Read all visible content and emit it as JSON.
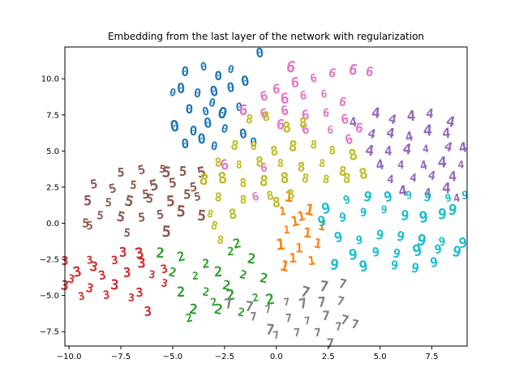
{
  "chart_data": {
    "type": "scatter",
    "title": "Embedding from the last layer of the network with regularization",
    "xlabel": "",
    "ylabel": "",
    "xlim": [
      -10.2,
      9.2
    ],
    "ylim": [
      -8.5,
      12.2
    ],
    "x_ticks": [
      -10.0,
      -7.5,
      -5.0,
      -2.5,
      0.0,
      2.5,
      5.0,
      7.5
    ],
    "y_ticks": [
      -7.5,
      -5.0,
      -2.5,
      0.0,
      2.5,
      5.0,
      7.5,
      10.0
    ],
    "x_tick_labels": [
      "−10.0",
      "−7.5",
      "−5.0",
      "−2.5",
      "0.0",
      "2.5",
      "5.0",
      "7.5"
    ],
    "y_tick_labels": [
      "−7.5",
      "−5.0",
      "−2.5",
      "0.0",
      "2.5",
      "5.0",
      "7.5",
      "10.0"
    ],
    "grid": false,
    "markers": "digit glyph images",
    "series": [
      {
        "name": "0",
        "color": "#1f77b4",
        "points": [
          [
            -4.4,
            10.5
          ],
          [
            -3.5,
            10.8
          ],
          [
            -2.8,
            10.2
          ],
          [
            -2.2,
            10.6
          ],
          [
            -4.6,
            9.3
          ],
          [
            -3.8,
            9.0
          ],
          [
            -3.0,
            9.1
          ],
          [
            -2.2,
            9.4
          ],
          [
            -1.5,
            9.8
          ],
          [
            -4.2,
            7.9
          ],
          [
            -3.4,
            7.7
          ],
          [
            -2.6,
            7.6
          ],
          [
            -1.8,
            8.0
          ],
          [
            -4.9,
            6.7
          ],
          [
            -4.0,
            6.4
          ],
          [
            -3.3,
            6.9
          ],
          [
            -2.5,
            6.5
          ],
          [
            -1.6,
            6.2
          ],
          [
            -4.4,
            5.5
          ],
          [
            -3.0,
            5.3
          ],
          [
            -1.1,
            5.6
          ],
          [
            -5.0,
            9.0
          ],
          [
            -3.1,
            8.3
          ],
          [
            -0.8,
            11.8
          ],
          [
            -3.6,
            5.8
          ]
        ]
      },
      {
        "name": "1",
        "color": "#ff7f0e",
        "points": [
          [
            0.6,
            1.8
          ],
          [
            0.3,
            0.8
          ],
          [
            1.2,
            0.5
          ],
          [
            0.5,
            -0.5
          ],
          [
            1.5,
            -0.7
          ],
          [
            0.2,
            -1.5
          ],
          [
            1.1,
            -1.7
          ],
          [
            2.0,
            -1.4
          ],
          [
            0.8,
            -2.4
          ],
          [
            1.7,
            -2.6
          ],
          [
            0.9,
            0.1
          ],
          [
            2.2,
            -0.2
          ],
          [
            0.4,
            -3.0
          ],
          [
            1.6,
            0.9
          ]
        ]
      },
      {
        "name": "2",
        "color": "#2ca02c",
        "points": [
          [
            -5.6,
            -2.1
          ],
          [
            -4.6,
            -2.3
          ],
          [
            -3.4,
            -2.8
          ],
          [
            -2.2,
            -2.0
          ],
          [
            -1.2,
            -2.5
          ],
          [
            -5.0,
            -3.4
          ],
          [
            -3.9,
            -3.7
          ],
          [
            -2.8,
            -3.4
          ],
          [
            -1.6,
            -3.6
          ],
          [
            -0.6,
            -3.8
          ],
          [
            -4.6,
            -4.8
          ],
          [
            -3.4,
            -4.8
          ],
          [
            -2.2,
            -5.0
          ],
          [
            -1.0,
            -5.2
          ],
          [
            -4.0,
            -6.0
          ],
          [
            -2.8,
            -6.0
          ],
          [
            -1.7,
            -6.2
          ],
          [
            -4.2,
            -6.6
          ],
          [
            -3.0,
            -5.5
          ],
          [
            -2.4,
            -4.3
          ],
          [
            -0.3,
            -5.3
          ],
          [
            -1.9,
            -1.4
          ]
        ]
      },
      {
        "name": "3",
        "color": "#d62728",
        "points": [
          [
            -10.2,
            -2.6
          ],
          [
            -9.0,
            -2.6
          ],
          [
            -7.8,
            -2.6
          ],
          [
            -6.6,
            -2.1
          ],
          [
            -5.4,
            -3.2
          ],
          [
            -9.6,
            -3.4
          ],
          [
            -8.4,
            -3.6
          ],
          [
            -7.2,
            -3.4
          ],
          [
            -6.0,
            -3.6
          ],
          [
            -10.2,
            -4.3
          ],
          [
            -9.0,
            -4.5
          ],
          [
            -7.8,
            -4.3
          ],
          [
            -6.6,
            -4.8
          ],
          [
            -5.4,
            -4.2
          ],
          [
            -9.4,
            -5.1
          ],
          [
            -8.2,
            -5.0
          ],
          [
            -7.0,
            -5.2
          ],
          [
            -6.2,
            -6.1
          ],
          [
            -8.8,
            -3.0
          ],
          [
            -7.4,
            -2.0
          ],
          [
            -9.9,
            -3.9
          ],
          [
            -6.5,
            -2.8
          ]
        ]
      },
      {
        "name": "4",
        "color": "#9467bd",
        "points": [
          [
            4.8,
            7.6
          ],
          [
            5.6,
            7.2
          ],
          [
            6.5,
            7.4
          ],
          [
            7.4,
            7.6
          ],
          [
            8.4,
            7.0
          ],
          [
            4.6,
            6.2
          ],
          [
            5.5,
            6.2
          ],
          [
            6.4,
            6.0
          ],
          [
            7.3,
            6.4
          ],
          [
            8.2,
            6.2
          ],
          [
            4.5,
            5.0
          ],
          [
            5.4,
            5.0
          ],
          [
            6.3,
            5.1
          ],
          [
            7.2,
            5.1
          ],
          [
            8.3,
            5.3
          ],
          [
            9.0,
            5.2
          ],
          [
            5.0,
            4.0
          ],
          [
            6.0,
            4.0
          ],
          [
            7.1,
            4.0
          ],
          [
            8.0,
            4.2
          ],
          [
            8.9,
            4.0
          ],
          [
            5.5,
            3.0
          ],
          [
            6.6,
            3.1
          ],
          [
            7.5,
            3.3
          ],
          [
            8.5,
            3.2
          ],
          [
            6.1,
            2.2
          ],
          [
            7.3,
            2.1
          ],
          [
            8.2,
            2.4
          ],
          [
            8.7,
            1.7
          ],
          [
            3.7,
            7.0
          ]
        ]
      },
      {
        "name": "5",
        "color": "#8c564b",
        "points": [
          [
            -7.5,
            3.5
          ],
          [
            -6.5,
            3.7
          ],
          [
            -5.5,
            3.7
          ],
          [
            -4.5,
            3.6
          ],
          [
            -3.6,
            3.5
          ],
          [
            -8.8,
            2.7
          ],
          [
            -7.9,
            2.4
          ],
          [
            -6.9,
            2.6
          ],
          [
            -5.9,
            2.6
          ],
          [
            -5.0,
            2.8
          ],
          [
            -4.0,
            2.5
          ],
          [
            -9.1,
            1.5
          ],
          [
            -8.1,
            1.4
          ],
          [
            -7.1,
            1.5
          ],
          [
            -6.1,
            1.7
          ],
          [
            -5.1,
            1.5
          ],
          [
            -3.8,
            1.8
          ],
          [
            -8.5,
            0.5
          ],
          [
            -7.5,
            0.4
          ],
          [
            -6.5,
            0.4
          ],
          [
            -5.6,
            0.6
          ],
          [
            -4.6,
            0.8
          ],
          [
            -3.6,
            0.5
          ],
          [
            -9.2,
            0.0
          ],
          [
            -7.2,
            -0.7
          ],
          [
            -5.3,
            -0.6
          ],
          [
            -6.3,
            2.0
          ],
          [
            -4.3,
            2.0
          ],
          [
            -9.0,
            -0.2
          ],
          [
            -5.3,
            3.5
          ]
        ]
      },
      {
        "name": "6",
        "color": "#e377c2",
        "points": [
          [
            0.0,
            9.3
          ],
          [
            0.9,
            9.7
          ],
          [
            1.8,
            10.0
          ],
          [
            2.7,
            10.4
          ],
          [
            3.7,
            10.6
          ],
          [
            4.5,
            10.5
          ],
          [
            -0.6,
            8.8
          ],
          [
            0.4,
            8.6
          ],
          [
            1.3,
            8.8
          ],
          [
            2.3,
            8.9
          ],
          [
            3.2,
            8.4
          ],
          [
            -1.6,
            7.8
          ],
          [
            -0.6,
            7.6
          ],
          [
            0.4,
            7.8
          ],
          [
            1.4,
            7.5
          ],
          [
            2.4,
            7.6
          ],
          [
            3.3,
            7.2
          ],
          [
            0.2,
            6.8
          ],
          [
            1.4,
            6.5
          ],
          [
            2.6,
            6.4
          ],
          [
            3.5,
            5.8
          ],
          [
            -2.5,
            4.0
          ],
          [
            -0.6,
            3.8
          ],
          [
            4.0,
            6.6
          ],
          [
            0.7,
            10.8
          ],
          [
            -1.0,
            1.8
          ]
        ]
      },
      {
        "name": "7",
        "color": "#7f7f7f",
        "points": [
          [
            1.4,
            -4.8
          ],
          [
            2.3,
            -4.4
          ],
          [
            3.2,
            -4.2
          ],
          [
            0.5,
            -5.5
          ],
          [
            1.3,
            -5.6
          ],
          [
            2.2,
            -5.5
          ],
          [
            3.1,
            -5.4
          ],
          [
            -2.3,
            -5.6
          ],
          [
            -1.3,
            -5.8
          ],
          [
            -0.4,
            -6.0
          ],
          [
            0.6,
            -6.6
          ],
          [
            1.5,
            -6.8
          ],
          [
            2.4,
            -6.4
          ],
          [
            3.3,
            -6.7
          ],
          [
            -1.1,
            -6.5
          ],
          [
            0.0,
            -7.8
          ],
          [
            1.0,
            -7.6
          ],
          [
            2.0,
            -7.6
          ],
          [
            3.0,
            -7.2
          ],
          [
            3.8,
            -7.0
          ],
          [
            2.6,
            -8.3
          ],
          [
            -0.3,
            -7.4
          ]
        ]
      },
      {
        "name": "8",
        "color": "#bcbd22",
        "points": [
          [
            -1.3,
            7.2
          ],
          [
            -0.5,
            7.4
          ],
          [
            0.5,
            6.6
          ],
          [
            1.3,
            6.9
          ],
          [
            -2.0,
            5.4
          ],
          [
            -1.1,
            5.3
          ],
          [
            -0.1,
            5.0
          ],
          [
            0.8,
            5.3
          ],
          [
            1.8,
            5.4
          ],
          [
            2.7,
            5.0
          ],
          [
            3.7,
            4.7
          ],
          [
            -2.8,
            4.2
          ],
          [
            -1.8,
            4.0
          ],
          [
            -0.8,
            4.2
          ],
          [
            0.2,
            4.1
          ],
          [
            1.2,
            3.9
          ],
          [
            2.2,
            4.1
          ],
          [
            3.2,
            3.6
          ],
          [
            4.2,
            3.4
          ],
          [
            -3.5,
            3.0
          ],
          [
            -2.6,
            3.1
          ],
          [
            -1.6,
            2.8
          ],
          [
            -0.6,
            2.9
          ],
          [
            0.4,
            3.1
          ],
          [
            1.4,
            3.1
          ],
          [
            2.4,
            3.0
          ],
          [
            3.4,
            3.1
          ],
          [
            -2.8,
            1.8
          ],
          [
            -1.6,
            1.6
          ],
          [
            -0.3,
            1.9
          ],
          [
            0.7,
            2.0
          ],
          [
            -3.2,
            0.6
          ],
          [
            -2.1,
            0.6
          ],
          [
            -3.0,
            -0.2
          ],
          [
            -2.7,
            -1.2
          ],
          [
            0.0,
            1.4
          ]
        ]
      },
      {
        "name": "9",
        "color": "#17becf",
        "points": [
          [
            2.4,
            1.0
          ],
          [
            3.4,
            1.6
          ],
          [
            4.4,
            1.8
          ],
          [
            5.4,
            1.8
          ],
          [
            6.4,
            1.9
          ],
          [
            7.3,
            1.8
          ],
          [
            8.3,
            1.7
          ],
          [
            9.1,
            1.9
          ],
          [
            2.2,
            0.1
          ],
          [
            3.2,
            0.4
          ],
          [
            4.2,
            0.7
          ],
          [
            5.2,
            0.9
          ],
          [
            6.2,
            0.5
          ],
          [
            7.1,
            0.4
          ],
          [
            8.0,
            0.6
          ],
          [
            3.0,
            -1.0
          ],
          [
            4.0,
            -1.2
          ],
          [
            5.0,
            -0.8
          ],
          [
            6.0,
            -0.9
          ],
          [
            7.0,
            -1.2
          ],
          [
            8.0,
            -1.3
          ],
          [
            9.0,
            -1.4
          ],
          [
            3.7,
            -2.2
          ],
          [
            4.8,
            -2.0
          ],
          [
            5.8,
            -2.1
          ],
          [
            6.8,
            -1.9
          ],
          [
            7.8,
            -1.8
          ],
          [
            8.7,
            -2.0
          ],
          [
            4.2,
            -3.0
          ],
          [
            5.7,
            -2.9
          ],
          [
            6.7,
            -3.1
          ],
          [
            7.6,
            -2.7
          ],
          [
            2.8,
            -2.9
          ],
          [
            8.5,
            0.9
          ]
        ]
      }
    ]
  }
}
